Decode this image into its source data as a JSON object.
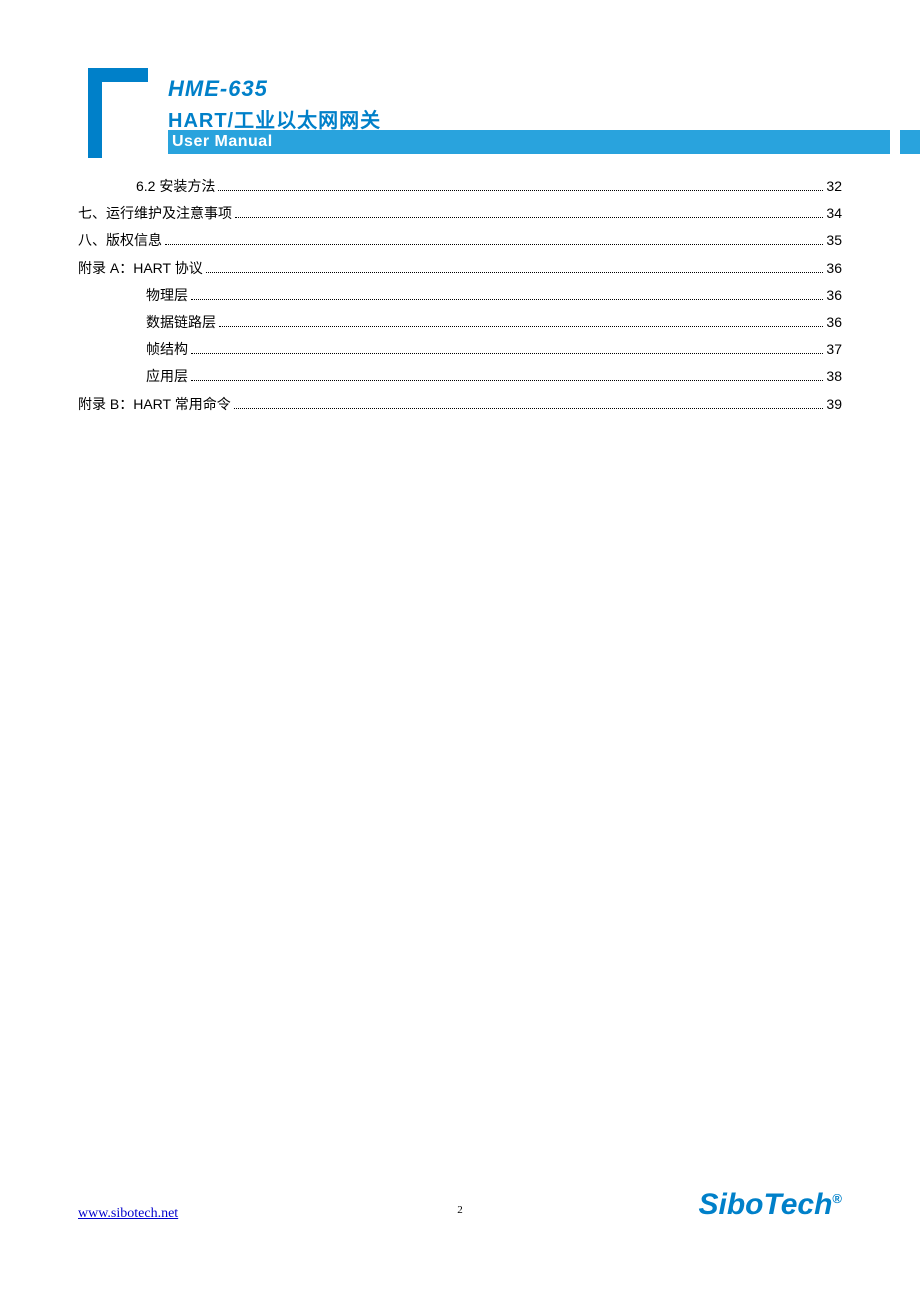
{
  "header": {
    "model": "HME-635",
    "subtitle_en": "HART",
    "subtitle_cn": "/工业以太网网关",
    "bar_label": "User Manual"
  },
  "colors": {
    "brand_blue": "#0080c9",
    "bar_blue": "#29a3dd",
    "link_blue": "#0000cc",
    "text": "#000000",
    "bg": "#ffffff"
  },
  "toc": [
    {
      "label": "6.2  安装方法",
      "page": "32",
      "indent": 1
    },
    {
      "label": "七、运行维护及注意事项",
      "page": "34",
      "indent": 0
    },
    {
      "label": "八、版权信息",
      "page": "35",
      "indent": 0
    },
    {
      "label": "附录 A：HART 协议",
      "page": "36",
      "indent": 0
    },
    {
      "label": "物理层",
      "page": "36",
      "indent": 2
    },
    {
      "label": "数据链路层",
      "page": "36",
      "indent": 2
    },
    {
      "label": "帧结构",
      "page": "37",
      "indent": 2
    },
    {
      "label": "应用层",
      "page": "38",
      "indent": 2
    },
    {
      "label": "附录 B：HART 常用命令",
      "page": "39",
      "indent": 0
    }
  ],
  "footer": {
    "url": "www.sibotech.net",
    "page_number": "2",
    "company": "SiboTech",
    "reg": "®"
  }
}
